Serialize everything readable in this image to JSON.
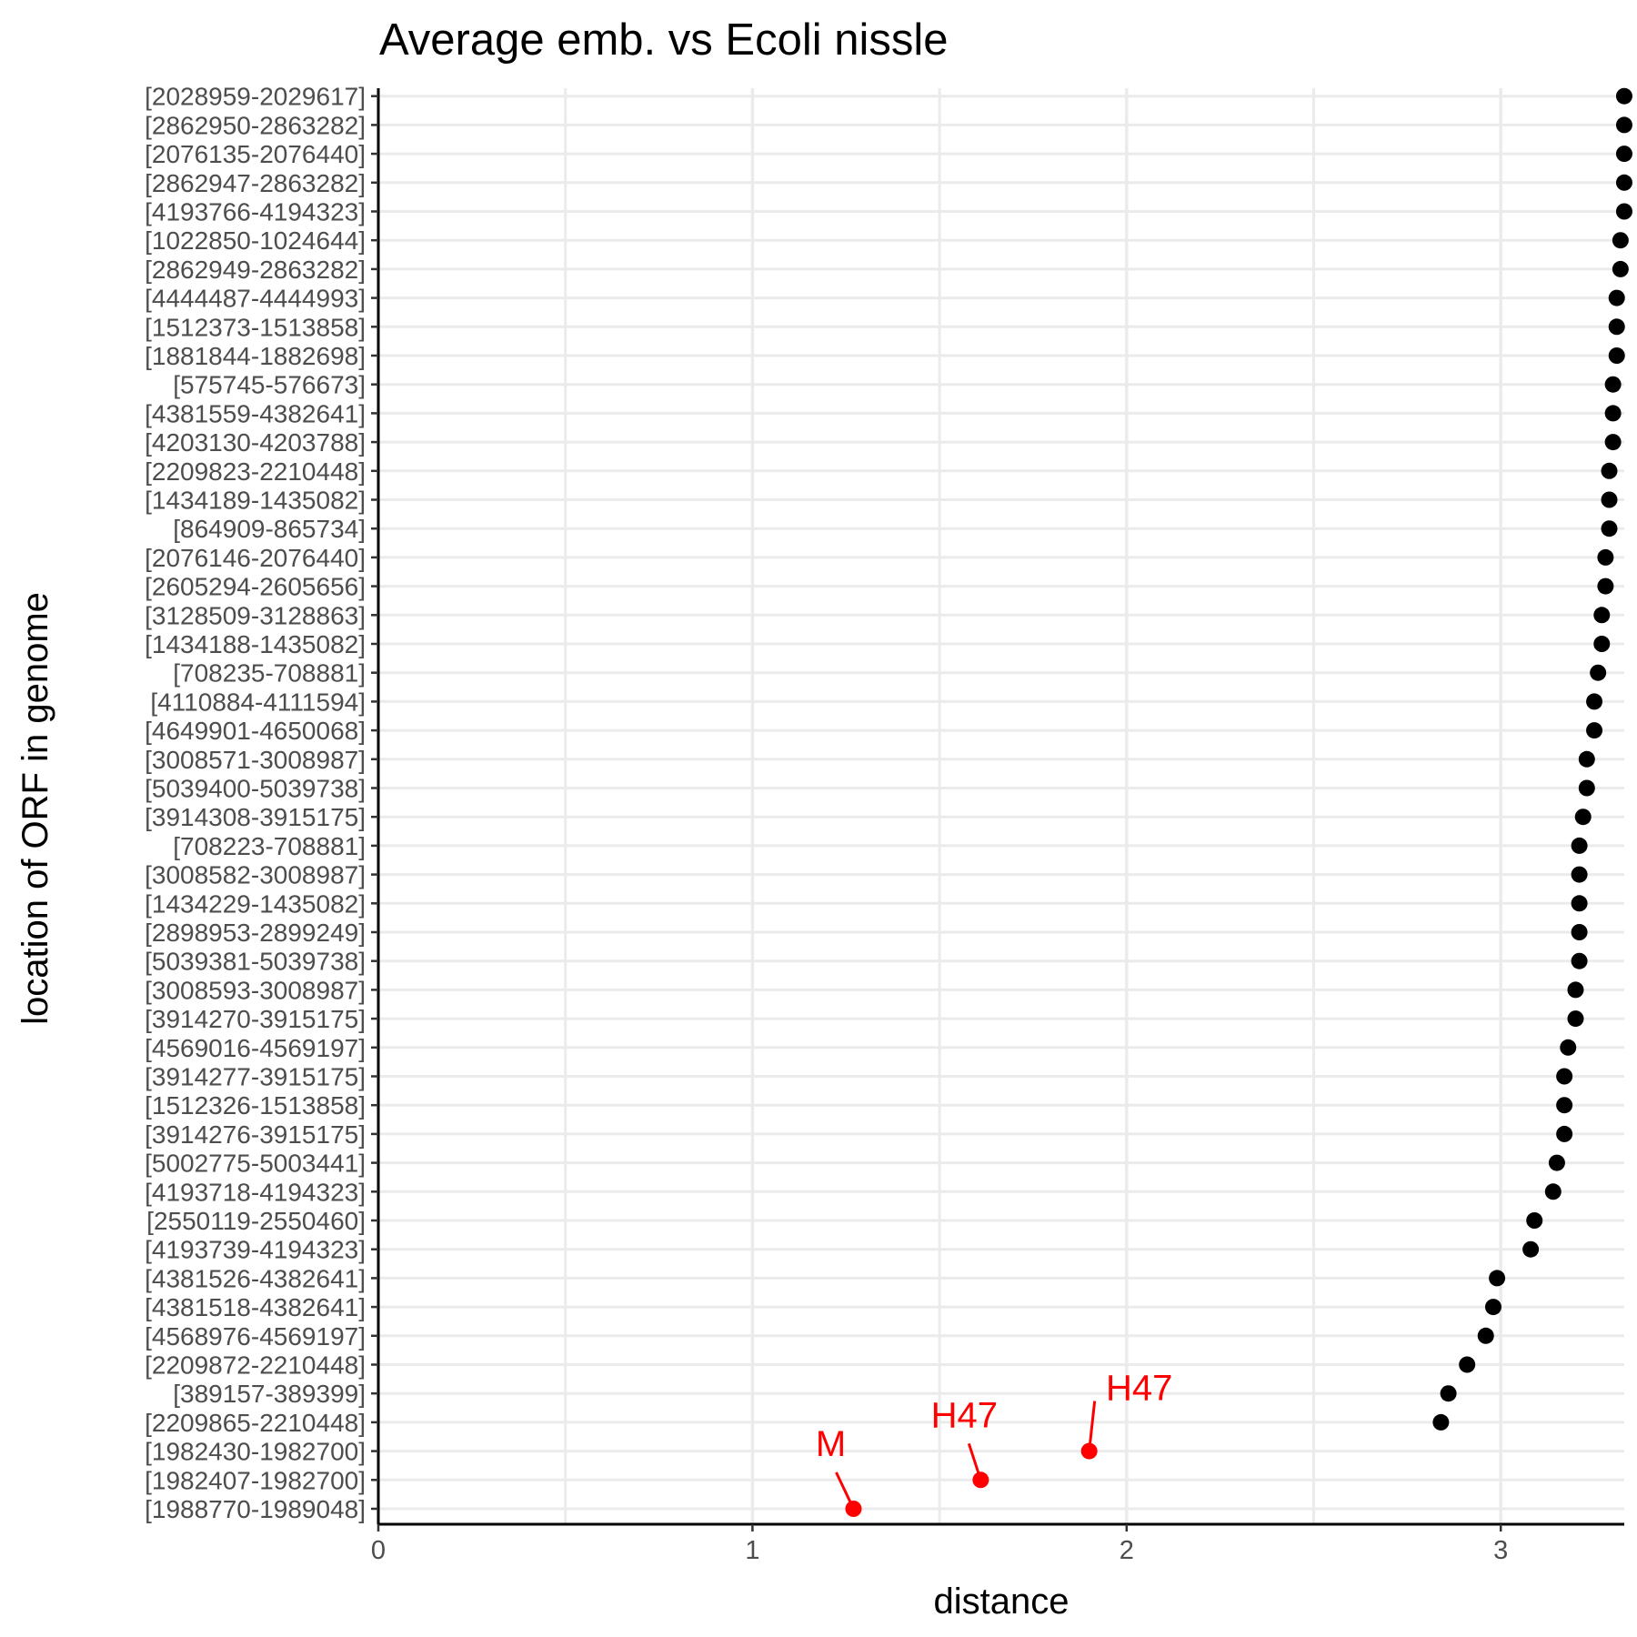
{
  "chart_data": {
    "type": "scatter",
    "title": "Average emb. vs Ecoli nissle",
    "xlabel": "distance",
    "ylabel": "location of ORF in genome",
    "xlim": [
      0,
      3.33
    ],
    "xticks": [
      0,
      1,
      2,
      3
    ],
    "x_minor_gridlines": [
      0.5,
      1.5,
      2.5
    ],
    "grid": true,
    "point_color": "#000000",
    "highlight_color": "#ff0000",
    "categories": [
      "[1988770-1989048]",
      "[1982407-1982700]",
      "[1982430-1982700]",
      "[2209865-2210448]",
      "[389157-389399]",
      "[2209872-2210448]",
      "[4568976-4569197]",
      "[4381518-4382641]",
      "[4381526-4382641]",
      "[4193739-4194323]",
      "[2550119-2550460]",
      "[4193718-4194323]",
      "[5002775-5003441]",
      "[3914276-3915175]",
      "[1512326-1513858]",
      "[3914277-3915175]",
      "[4569016-4569197]",
      "[3914270-3915175]",
      "[3008593-3008987]",
      "[5039381-5039738]",
      "[2898953-2899249]",
      "[1434229-1435082]",
      "[3008582-3008987]",
      "[708223-708881]",
      "[3914308-3915175]",
      "[5039400-5039738]",
      "[3008571-3008987]",
      "[4649901-4650068]",
      "[4110884-4111594]",
      "[708235-708881]",
      "[1434188-1435082]",
      "[3128509-3128863]",
      "[2605294-2605656]",
      "[2076146-2076440]",
      "[864909-865734]",
      "[1434189-1435082]",
      "[2209823-2210448]",
      "[4203130-4203788]",
      "[4381559-4382641]",
      "[575745-576673]",
      "[1881844-1882698]",
      "[1512373-1513858]",
      "[4444487-4444993]",
      "[2862949-2863282]",
      "[1022850-1024644]",
      "[4193766-4194323]",
      "[2862947-2863282]",
      "[2076135-2076440]",
      "[2862950-2863282]",
      "[2028959-2029617]"
    ],
    "values": [
      1.27,
      1.61,
      1.9,
      2.84,
      2.86,
      2.91,
      2.96,
      2.98,
      2.99,
      3.08,
      3.09,
      3.14,
      3.15,
      3.17,
      3.17,
      3.17,
      3.18,
      3.2,
      3.2,
      3.21,
      3.21,
      3.21,
      3.21,
      3.21,
      3.22,
      3.23,
      3.23,
      3.25,
      3.25,
      3.26,
      3.27,
      3.27,
      3.28,
      3.28,
      3.29,
      3.29,
      3.29,
      3.3,
      3.3,
      3.3,
      3.31,
      3.31,
      3.31,
      3.32,
      3.32,
      3.33,
      3.33,
      3.33,
      3.33,
      3.33
    ],
    "highlights": [
      {
        "category": "[1988770-1989048]",
        "x": 1.27,
        "label": "M"
      },
      {
        "category": "[1982407-1982700]",
        "x": 1.61,
        "label": "H47"
      },
      {
        "category": "[1982430-1982700]",
        "x": 1.9,
        "label": "H47"
      }
    ]
  }
}
